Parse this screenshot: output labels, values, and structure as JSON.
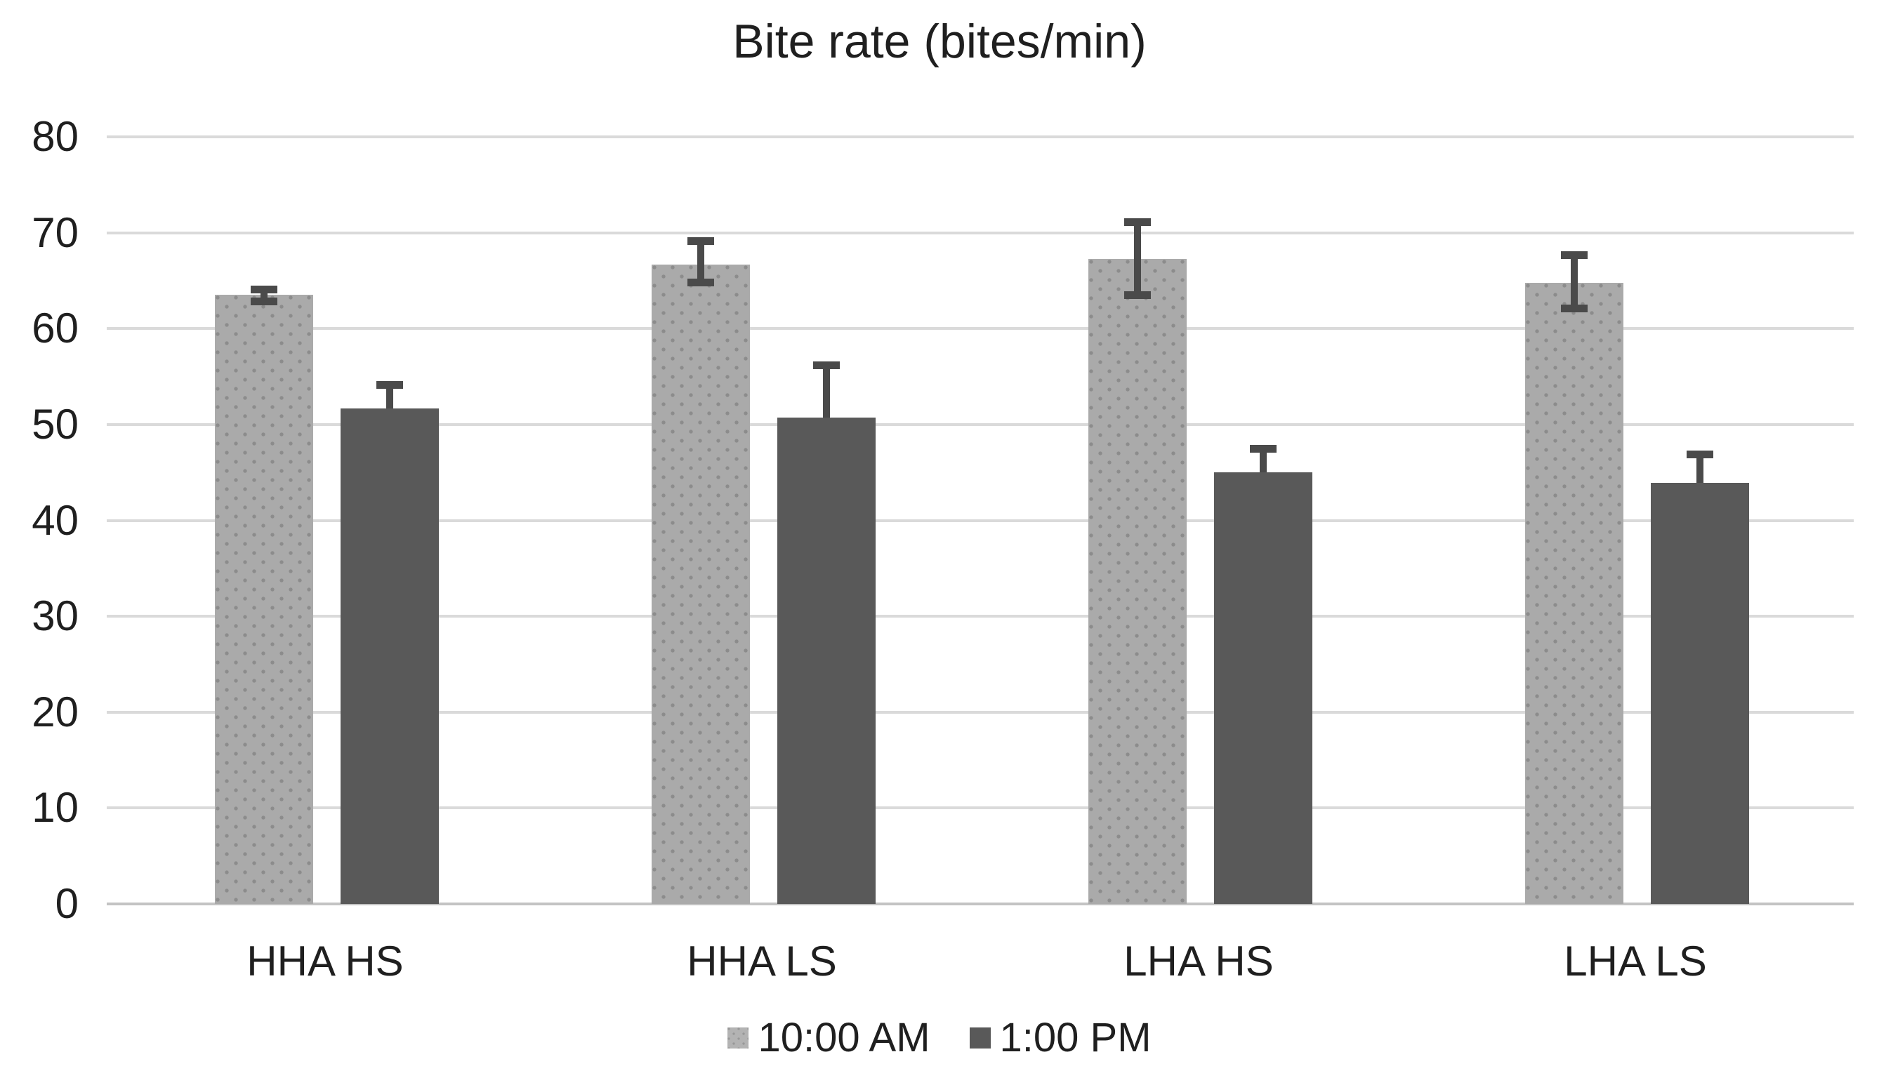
{
  "chart_data": {
    "type": "bar",
    "title": "Bite rate (bites/min)",
    "categories": [
      "HHA HS",
      "HHA LS",
      "LHA HS",
      "LHA LS"
    ],
    "series": [
      {
        "name": "10:00 AM",
        "short": "10am",
        "values": [
          63.5,
          66.7,
          67.3,
          64.8
        ],
        "error_up": [
          1.0,
          2.8,
          4.2,
          3.3
        ],
        "error_down": [
          1.1,
          2.3,
          4.2,
          3.1
        ],
        "fill": "#aaaaaa",
        "pattern": "dotted",
        "dot_color": "#8c8c8c"
      },
      {
        "name": "1:00 PM",
        "short": "1pm",
        "values": [
          51.7,
          50.7,
          45.0,
          43.9
        ],
        "error_up": [
          2.8,
          5.9,
          2.9,
          3.4
        ],
        "error_down": [
          null,
          null,
          null,
          null
        ],
        "fill": "#595959",
        "pattern": "solid"
      }
    ],
    "ylim": [
      0,
      80
    ],
    "ytick_step": 10,
    "ytick_labels": [
      "0",
      "10",
      "20",
      "30",
      "40",
      "50",
      "60",
      "70",
      "80"
    ],
    "xlabel": "",
    "ylabel": "",
    "grid": true,
    "gridline_color": "#dadada",
    "axis_line_color": "#c3c3c3",
    "error_bar_color": "#4a4a4a",
    "text_color": "#1f1f1f",
    "legend_position": "bottom"
  }
}
